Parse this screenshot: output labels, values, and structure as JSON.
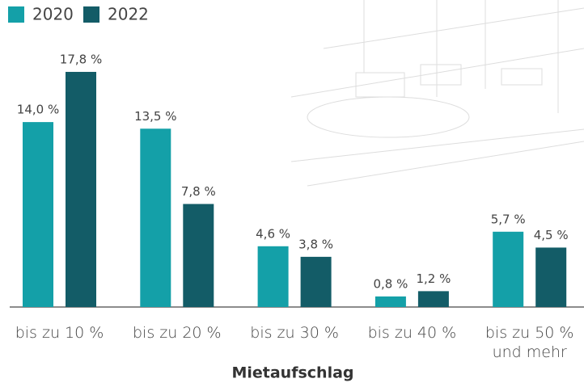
{
  "chart_data": {
    "type": "bar",
    "x_label": "Mietaufschlag",
    "categories": [
      "bis zu 10 %",
      "bis zu 20 %",
      "bis zu 30 %",
      "bis zu 40 %",
      "bis zu 50 % und mehr"
    ],
    "series": [
      {
        "name": "2020",
        "color": "#14a0a8",
        "values": [
          14.0,
          13.5,
          4.6,
          0.8,
          5.7
        ],
        "value_labels": [
          "14,0 %",
          "13,5 %",
          "4,6 %",
          "0,8 %",
          "5,7 %"
        ]
      },
      {
        "name": "2022",
        "color": "#135c67",
        "values": [
          17.8,
          7.8,
          3.8,
          1.2,
          4.5
        ],
        "value_labels": [
          "17,8 %",
          "7,8 %",
          "3,8 %",
          "1,2 %",
          "4,5 %"
        ]
      }
    ],
    "legend": "top-left"
  }
}
